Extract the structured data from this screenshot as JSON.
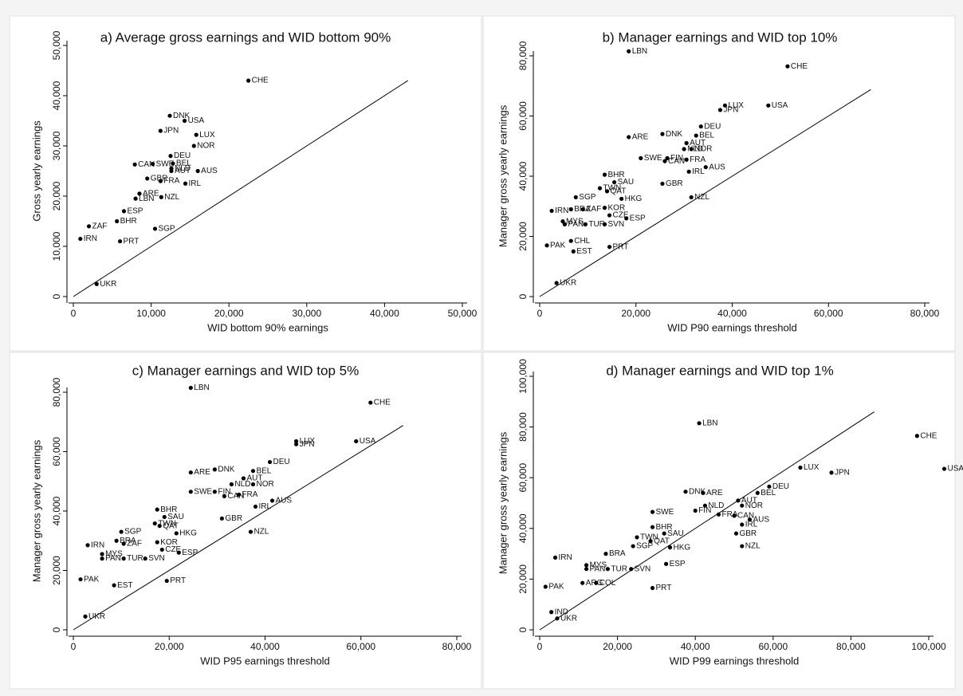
{
  "chart_data": [
    {
      "type": "scatter",
      "title": "a) Average gross earnings and WID bottom 90%",
      "x_label": "WID bottom 90% earnings",
      "y_label": "Gross yearly earnings",
      "color": "#000000",
      "labels": [
        "CHE",
        "DNK",
        "USA",
        "JPN",
        "LUX",
        "NOR",
        "DEU",
        "CAN",
        "SWE",
        "BEL",
        "NLD",
        "AUT",
        "AUS",
        "GBR",
        "FRA",
        "IRL",
        "ARE",
        "NZL",
        "LBN",
        "SGP",
        "ZAF",
        "IRN",
        "PRT",
        "ESP",
        "BHR",
        "UKR"
      ],
      "x": [
        22500,
        12400,
        14300,
        11200,
        15800,
        15500,
        12500,
        7900,
        10200,
        12800,
        12600,
        12600,
        16000,
        9500,
        11200,
        14400,
        8500,
        11300,
        8000,
        10500,
        2000,
        900,
        6000,
        6500,
        5600,
        3000
      ],
      "values": [
        43000,
        36000,
        35000,
        33000,
        32200,
        30000,
        28000,
        26300,
        26400,
        26500,
        25500,
        25000,
        25000,
        23500,
        23000,
        22500,
        20500,
        19800,
        19500,
        13500,
        14000,
        11500,
        11000,
        17000,
        15000,
        2500
      ],
      "xlim": [
        0,
        50000
      ],
      "ylim": [
        0,
        50000
      ],
      "xticks": [
        0,
        {
          "value": 10000,
          "label": "10,000"
        },
        {
          "value": 20000,
          "label": "20,000"
        },
        {
          "value": 30000,
          "label": "30,000"
        },
        {
          "value": 40000,
          "label": "40,000"
        },
        {
          "value": 50000,
          "label": "50,000"
        }
      ],
      "yticks": [
        0,
        {
          "value": 10000,
          "label": "10,000"
        },
        {
          "value": 20000,
          "label": "20,000"
        },
        {
          "value": 30000,
          "label": "30,000"
        },
        {
          "value": 40000,
          "label": "40,000"
        },
        {
          "value": 50000,
          "label": "50,000"
        }
      ]
    },
    {
      "type": "scatter",
      "title": "b) Manager earnings and WID top 10%",
      "x_label": "WID P90 earnings threshold",
      "y_label": "Manager gross yearly earnings",
      "color": "#000000",
      "labels": [
        "LBN",
        "CHE",
        "LUX",
        "USA",
        "JPN",
        "DEU",
        "DNK",
        "BEL",
        "ARE",
        "AUT",
        "NLD",
        "NOR",
        "SWE",
        "FIN",
        "FRA",
        "CAN",
        "AUS",
        "IRL",
        "BHR",
        "SAU",
        "GBR",
        "TWN",
        "QAT",
        "SGP",
        "HKG",
        "NZL",
        "IRN",
        "BRA",
        "ZAF",
        "KOR",
        "CZE",
        "MYS",
        "PAN",
        "TUR",
        "SVN",
        "ESP",
        "PRT",
        "PAK",
        "EST",
        "CHL",
        "UKR"
      ],
      "x": [
        18500,
        51500,
        38500,
        47500,
        37500,
        33500,
        25500,
        32500,
        18500,
        30500,
        30000,
        31500,
        21000,
        26500,
        30500,
        26000,
        34500,
        31000,
        13500,
        15500,
        25500,
        12500,
        14000,
        7500,
        17000,
        31500,
        2500,
        6500,
        9000,
        13500,
        14500,
        4800,
        5200,
        9500,
        13500,
        18000,
        14500,
        1500,
        7000,
        6500,
        3500
      ],
      "values": [
        81500,
        76500,
        63500,
        63500,
        62000,
        56500,
        54000,
        53500,
        53000,
        51000,
        49000,
        49000,
        46000,
        46000,
        45500,
        45000,
        43000,
        41500,
        40500,
        38000,
        37500,
        36000,
        35000,
        33000,
        32500,
        33000,
        28500,
        29000,
        29000,
        29500,
        27000,
        25000,
        24000,
        24000,
        24000,
        26000,
        16500,
        17000,
        15000,
        18500,
        4500
      ],
      "xlim": [
        0,
        80000
      ],
      "ylim": [
        0,
        80000
      ],
      "xticks": [
        0,
        {
          "value": 20000,
          "label": "20,000"
        },
        {
          "value": 40000,
          "label": "40,000"
        },
        {
          "value": 60000,
          "label": "60,000"
        },
        {
          "value": 80000,
          "label": "80,000"
        }
      ],
      "yticks": [
        0,
        {
          "value": 20000,
          "label": "20,000"
        },
        {
          "value": 40000,
          "label": "40,000"
        },
        {
          "value": 60000,
          "label": "60,000"
        },
        {
          "value": 80000,
          "label": "80,000"
        }
      ]
    },
    {
      "type": "scatter",
      "title": "c) Manager earnings and WID top 5%",
      "x_label": "WID P95 earnings threshold",
      "y_label": "Manager gross yearly earnings",
      "color": "#000000",
      "labels": [
        "LBN",
        "CHE",
        "LUX",
        "JPN",
        "USA",
        "DEU",
        "DNK",
        "BEL",
        "ARE",
        "AUT",
        "NLD",
        "NOR",
        "SWE",
        "FIN",
        "CAN",
        "FRA",
        "AUS",
        "IRL",
        "BHR",
        "SAU",
        "GBR",
        "TWN",
        "QAT",
        "HKG",
        "NZL",
        "SGP",
        "IRN",
        "BRA",
        "ZAF",
        "KOR",
        "CZE",
        "MYS",
        "PAN",
        "TUR",
        "SVN",
        "ESP",
        "PRT",
        "PAK",
        "EST",
        "UKR"
      ],
      "x": [
        24500,
        62000,
        46500,
        46500,
        59000,
        41000,
        29500,
        37500,
        24500,
        35500,
        33000,
        37500,
        24500,
        29500,
        31500,
        34500,
        41500,
        38000,
        17500,
        19000,
        31000,
        17000,
        18000,
        21500,
        37000,
        10000,
        3000,
        9000,
        10500,
        17500,
        18500,
        6000,
        6000,
        10500,
        15000,
        22000,
        19500,
        1500,
        8500,
        2500
      ],
      "values": [
        81500,
        76500,
        63500,
        62500,
        63500,
        56500,
        54000,
        53500,
        53000,
        51000,
        49000,
        49000,
        46500,
        46500,
        45000,
        45500,
        43500,
        41500,
        40500,
        38000,
        37500,
        35800,
        35000,
        32500,
        33000,
        33000,
        28500,
        30000,
        29000,
        29500,
        27000,
        25500,
        24000,
        24000,
        24000,
        26000,
        16500,
        17000,
        15000,
        4500
      ],
      "xlim": [
        0,
        80000
      ],
      "ylim": [
        0,
        80000
      ],
      "xticks": [
        0,
        {
          "value": 20000,
          "label": "20,000"
        },
        {
          "value": 40000,
          "label": "40,000"
        },
        {
          "value": 60000,
          "label": "60,000"
        },
        {
          "value": 80000,
          "label": "80,000"
        }
      ],
      "yticks": [
        0,
        {
          "value": 20000,
          "label": "20,000"
        },
        {
          "value": 40000,
          "label": "40,000"
        },
        {
          "value": 60000,
          "label": "60,000"
        },
        {
          "value": 80000,
          "label": "80,000"
        }
      ]
    },
    {
      "type": "scatter",
      "title": "d) Manager earnings and WID top 1%",
      "x_label": "WID P99 earnings threshold",
      "y_label": "Manager gross yearly earnings",
      "color": "#000000",
      "labels": [
        "LBN",
        "CHE",
        "USA",
        "LUX",
        "JPN",
        "DEU",
        "BEL",
        "DNK",
        "ARE",
        "AUT",
        "NOR",
        "NLD",
        "FIN",
        "FRA",
        "CAN",
        "AUS",
        "IRL",
        "SWE",
        "BHR",
        "SAU",
        "GBR",
        "TWN",
        "QAT",
        "SGP",
        "HKG",
        "NZL",
        "IRN",
        "BRA",
        "MYS",
        "PAN",
        "TUR",
        "SVN",
        "ESP",
        "PRT",
        "PAK",
        "ARG",
        "COL",
        "UKR",
        "IND"
      ],
      "x": [
        41000,
        97000,
        104000,
        67000,
        75000,
        59000,
        56000,
        37500,
        42000,
        51000,
        52000,
        42500,
        40000,
        46000,
        50000,
        54000,
        52000,
        29000,
        29000,
        32000,
        50500,
        25000,
        28500,
        24000,
        33500,
        52000,
        4000,
        17000,
        12000,
        12000,
        17500,
        23500,
        32500,
        29000,
        1500,
        11000,
        14500,
        4500,
        3000
      ],
      "values": [
        81500,
        76500,
        63500,
        64000,
        62000,
        56500,
        54000,
        54500,
        54000,
        51000,
        49000,
        49000,
        47000,
        45500,
        45000,
        43500,
        41500,
        46500,
        40500,
        38000,
        38000,
        36500,
        35000,
        33000,
        32500,
        33000,
        28500,
        30000,
        25500,
        24000,
        24000,
        24000,
        26000,
        16500,
        17000,
        18500,
        18500,
        4500,
        7000
      ],
      "xlim": [
        0,
        100000
      ],
      "ylim": [
        0,
        100000
      ],
      "xticks": [
        0,
        {
          "value": 20000,
          "label": "20,000"
        },
        {
          "value": 40000,
          "label": "40,000"
        },
        {
          "value": 60000,
          "label": "60,000"
        },
        {
          "value": 80000,
          "label": "80,000"
        },
        {
          "value": 100000,
          "label": "100,000"
        }
      ],
      "yticks": [
        0,
        {
          "value": 20000,
          "label": "20,000"
        },
        {
          "value": 40000,
          "label": "40,000"
        },
        {
          "value": 60000,
          "label": "60,000"
        },
        {
          "value": 80000,
          "label": "80,000"
        },
        {
          "value": 100000,
          "label": "100,000"
        }
      ]
    }
  ]
}
